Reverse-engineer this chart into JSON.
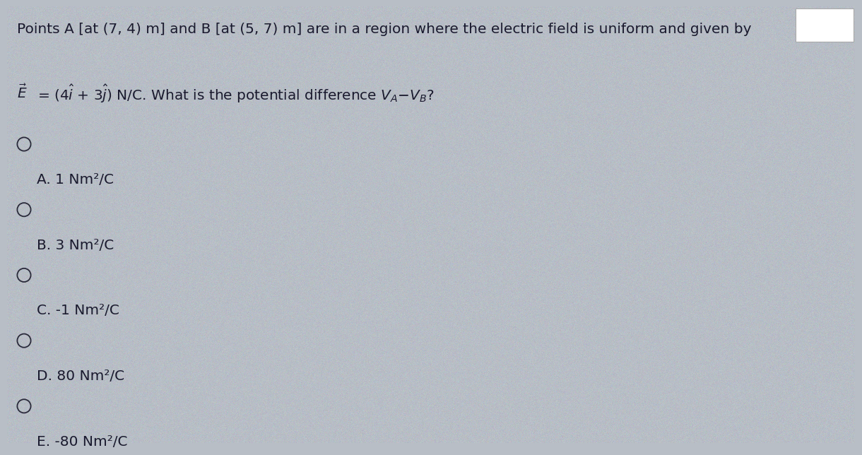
{
  "background_color": "#b8bec6",
  "text_color": "#1a1a2e",
  "title_line1": "Points A [at (7, 4) m] and B [at (5, 7) m] are in a region where the electric field is uniform and given by",
  "options": [
    "A. 1 Nm²/C",
    "B. 3 Nm²/C",
    "C. -1 Nm²/C",
    "D. 80 Nm²/C",
    "E. -80 Nm²/C"
  ],
  "font_size_title": 14.5,
  "font_size_options": 14.5,
  "fig_width": 12,
  "fig_height": 6.18
}
